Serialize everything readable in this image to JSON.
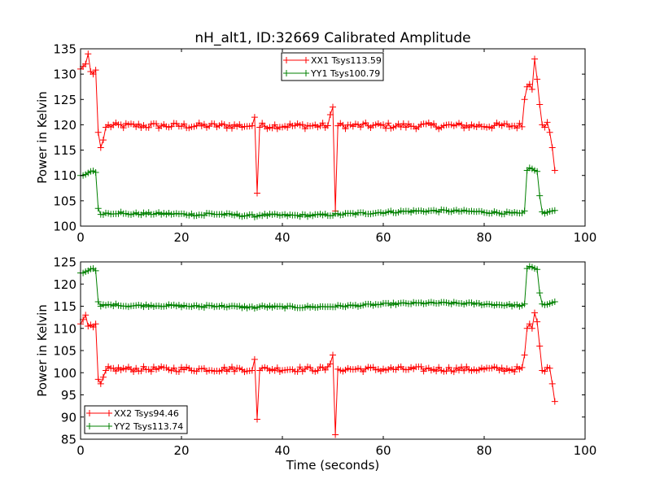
{
  "figure": {
    "title": "nH_alt1, ID:32669 Calibrated Amplitude"
  },
  "chart_data": [
    {
      "type": "line",
      "title": "nH_alt1, ID:32669 Calibrated Amplitude",
      "xlabel": "",
      "ylabel": "Power in Kelvin",
      "xlim": [
        0,
        100
      ],
      "ylim": [
        100,
        135
      ],
      "xticks": [
        0,
        20,
        40,
        60,
        80,
        100
      ],
      "yticks": [
        100,
        105,
        110,
        115,
        120,
        125,
        130,
        135
      ],
      "grid": false,
      "legend_position": "top-center",
      "series": [
        {
          "name": "XX1 Tsys113.59",
          "color": "#ff0000",
          "marker": "plus",
          "baseline": 119.8,
          "noise": 0.6,
          "special": {
            "0": 131,
            "0.5": 131.5,
            "1": 132,
            "1.5": 134,
            "2": 130.5,
            "2.5": 130,
            "3": 130.8,
            "3.5": 118.5,
            "4": 115.5,
            "4.5": 117,
            "5": 119.5,
            "34": 119.8,
            "34.5": 121.5,
            "35": 106.5,
            "35.5": 119.5,
            "49.5": 122,
            "50": 123.5,
            "50.5": 103,
            "51": 119.8,
            "88": 125,
            "88.5": 127.5,
            "89": 128,
            "89.5": 127,
            "90": 133,
            "90.5": 129,
            "91": 124,
            "91.5": 120,
            "92": 119.5,
            "92.5": 120.5,
            "93": 118.5,
            "93.5": 115.5,
            "94": 111
          }
        },
        {
          "name": "YY1 Tsys100.79",
          "color": "#008000",
          "marker": "plus",
          "baseline": 102.3,
          "noise": 0.25,
          "special": {
            "0": 110,
            "0.5": 110,
            "1": 110.2,
            "1.5": 110.5,
            "2": 110.8,
            "2.5": 110.9,
            "3": 110.6,
            "3.5": 103.5,
            "4": 102.3,
            "88": 103,
            "88.5": 111,
            "89": 111.5,
            "89.5": 111.3,
            "90": 111,
            "90.5": 110.8,
            "91": 106,
            "91.5": 102.8,
            "92": 102.5,
            "92.5": 102.7,
            "93": 102.9,
            "93.5": 103,
            "94": 103.1
          }
        }
      ]
    },
    {
      "type": "line",
      "title": "",
      "xlabel": "Time (seconds)",
      "ylabel": "Power in Kelvin",
      "xlim": [
        0,
        100
      ],
      "ylim": [
        85,
        125
      ],
      "xticks": [
        0,
        20,
        40,
        60,
        80,
        100
      ],
      "yticks": [
        85,
        90,
        95,
        100,
        105,
        110,
        115,
        120,
        125
      ],
      "grid": false,
      "legend_position": "lower-left",
      "series": [
        {
          "name": "XX2 Tsys94.46",
          "color": "#ff0000",
          "marker": "plus",
          "baseline": 100.8,
          "noise": 0.6,
          "special": {
            "0": 111,
            "0.5": 112,
            "1": 113,
            "1.5": 110.5,
            "2": 110.8,
            "2.5": 110.3,
            "3": 111,
            "3.5": 98.5,
            "4": 97.5,
            "4.5": 99,
            "5": 100.5,
            "34": 100.5,
            "34.5": 103,
            "35": 89.5,
            "35.5": 100.5,
            "49.5": 102,
            "50": 104,
            "50.5": 86,
            "51": 100.8,
            "88": 104,
            "88.5": 110,
            "89": 111,
            "89.5": 110,
            "90": 113.5,
            "90.5": 111.5,
            "91": 106,
            "91.5": 100.5,
            "92": 100.3,
            "92.5": 101.2,
            "93": 101,
            "93.5": 97.5,
            "94": 93.5
          }
        },
        {
          "name": "YY2 Tsys113.74",
          "color": "#008000",
          "marker": "plus",
          "baseline": 115.0,
          "noise": 0.25,
          "special": {
            "0": 122.5,
            "0.5": 122.5,
            "1": 122.8,
            "1.5": 123,
            "2": 123.4,
            "2.5": 123.5,
            "3": 123,
            "3.5": 116,
            "4": 115,
            "88": 115.5,
            "88.5": 123.5,
            "89": 124,
            "89.5": 123.8,
            "90": 123.5,
            "90.5": 123.3,
            "91": 118,
            "91.5": 115.5,
            "92": 115.3,
            "92.5": 115.4,
            "93": 115.6,
            "93.5": 115.8,
            "94": 116
          }
        }
      ]
    }
  ]
}
